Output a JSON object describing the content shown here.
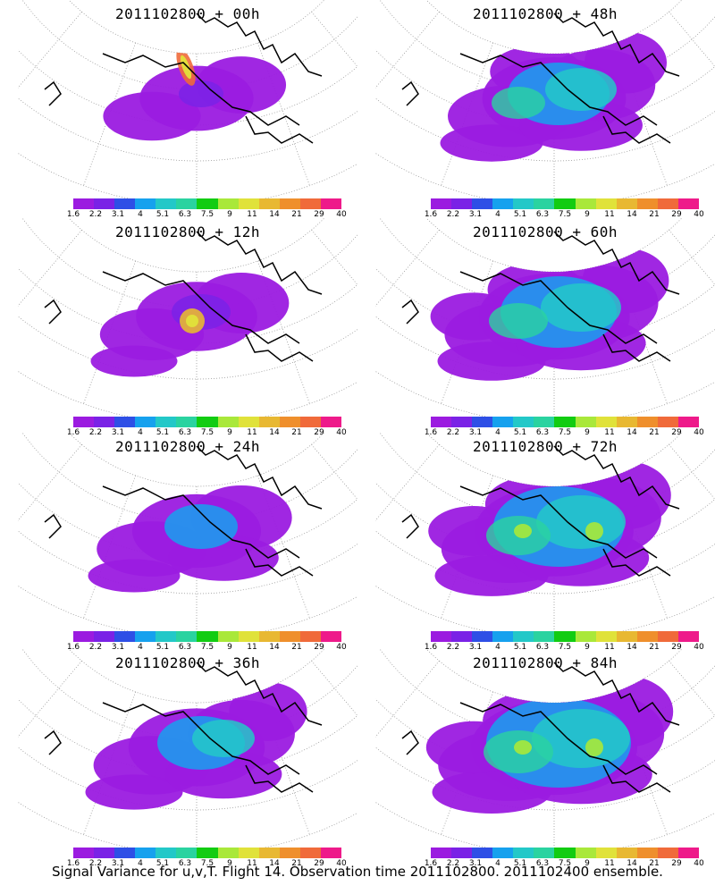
{
  "panels": [
    {
      "title": "2011102800  + 00h",
      "stage": 0
    },
    {
      "title": "2011102800  + 48h",
      "stage": 4
    },
    {
      "title": "2011102800  + 12h",
      "stage": 1
    },
    {
      "title": "2011102800  + 60h",
      "stage": 5
    },
    {
      "title": "2011102800  + 24h",
      "stage": 2
    },
    {
      "title": "2011102800  + 72h",
      "stage": 6
    },
    {
      "title": "2011102800  + 36h",
      "stage": 3
    },
    {
      "title": "2011102800  + 84h",
      "stage": 7
    }
  ],
  "colorbar": {
    "labels": [
      "1.6",
      "2.2",
      "3.1",
      "4",
      "5.1",
      "6.3",
      "7.5",
      "9",
      "11",
      "14",
      "21",
      "29",
      "40"
    ],
    "colors": [
      "#9b1be0",
      "#7a22e6",
      "#2e4fe6",
      "#16a1ee",
      "#23c8c8",
      "#2ad3a0",
      "#12cc12",
      "#a9e83a",
      "#e0e23a",
      "#e8b832",
      "#ef8f2c",
      "#f06a3a",
      "#ee1a8a"
    ]
  },
  "caption": "Signal Variance for u,v,T. Flight 14. Observation time 2011102800. 2011102400 ensemble."
}
